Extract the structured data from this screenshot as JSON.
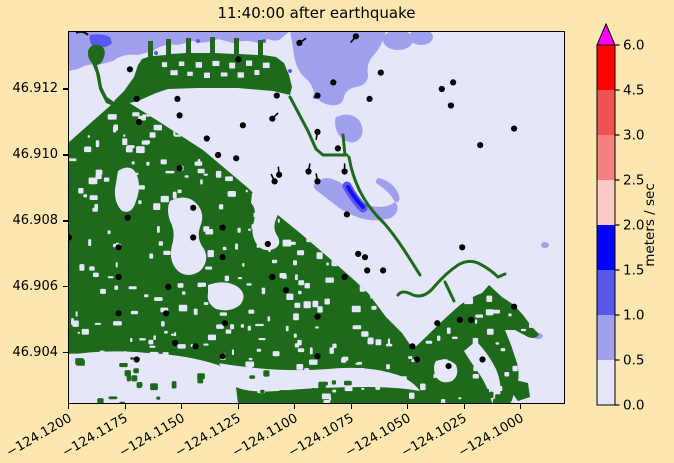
{
  "figure": {
    "title": "11:40:00 after earthquake"
  },
  "colors": {
    "figure_background": "#FCE7B0",
    "water": "#E6E6FA",
    "land_green": "#1C6A1A",
    "velocity_05_10": "#A0A0EE",
    "velocity_10_15": "#5858EE",
    "velocity_15_20": "#1212F0",
    "gauge_dot": "#000000"
  },
  "chart_data": {
    "type": "map",
    "title": "11:40:00 after earthquake",
    "description": "Tsunami current speed map with shoreline, inundated land in green, water velocity shading, and black gauge dots",
    "x_axis": {
      "label": "",
      "lim": [
        -124.12004,
        -124.09805
      ],
      "ticks": [
        -124.12,
        -124.1175,
        -124.115,
        -124.1125,
        -124.11,
        -124.1075,
        -124.105,
        -124.1025,
        -124.1
      ],
      "tick_labels": [
        "−124.1200",
        "−124.1175",
        "−124.1150",
        "−124.1125",
        "−124.1100",
        "−124.1075",
        "−124.1050",
        "−124.1025",
        "−124.1000"
      ],
      "tick_rotation_deg": 30
    },
    "y_axis": {
      "label": "",
      "lim": [
        46.90245,
        46.91376
      ],
      "ticks": [
        46.912,
        46.91,
        46.908,
        46.906,
        46.904
      ],
      "tick_labels": [
        "46.912",
        "46.910",
        "46.908",
        "46.906",
        "46.904"
      ]
    },
    "colorbar": {
      "label": "meters / sec",
      "boundary_values": [
        0.0,
        0.5,
        1.0,
        1.5,
        2.0,
        2.5,
        3.0,
        4.5,
        6.0
      ],
      "boundary_labels": [
        "0.0",
        "0.5",
        "1.0",
        "1.5",
        "2.0",
        "2.5",
        "3.0",
        "4.5",
        "6.0"
      ],
      "segment_colors_bottom_to_top": [
        "#E6E6FA",
        "#A0A0EE",
        "#5858EE",
        "#0000FF",
        "#FAC8C8",
        "#F48080",
        "#EE5252",
        "#FF0000"
      ],
      "over_arrow_color": "#FF00FF"
    },
    "gauges": [
      [
        -124.1098,
        46.9134,
        35
      ],
      [
        -124.1073,
        46.9136,
        230
      ],
      [
        -124.1125,
        46.9129
      ],
      [
        -124.1173,
        46.9126
      ],
      [
        -124.1062,
        46.9125
      ],
      [
        -124.1035,
        46.912
      ],
      [
        -124.103,
        46.9122
      ],
      [
        -124.1083,
        46.9122
      ],
      [
        -124.109,
        46.9118
      ],
      [
        -124.1067,
        46.9117
      ],
      [
        -124.1031,
        46.9115
      ],
      [
        -124.117,
        46.9117
      ],
      [
        -124.1152,
        46.9117
      ],
      [
        -124.1108,
        46.9118
      ],
      [
        -124.1151,
        46.9112
      ],
      [
        -124.1169,
        46.911
      ],
      [
        -124.1123,
        46.9109
      ],
      [
        -124.111,
        46.9111,
        45
      ],
      [
        -124.1003,
        46.9108
      ],
      [
        -124.1139,
        46.9105
      ],
      [
        -124.1018,
        46.9103
      ],
      [
        -124.1134,
        46.91
      ],
      [
        -124.1126,
        46.9099
      ],
      [
        -124.1151,
        46.9096
      ],
      [
        -124.1107,
        46.9094,
        95
      ],
      [
        -124.1094,
        46.9095,
        80
      ],
      [
        -124.109,
        46.9092,
        100
      ],
      [
        -124.1109,
        46.9092,
        115
      ],
      [
        -124.109,
        46.9107,
        260
      ],
      [
        -124.1081,
        46.9102
      ],
      [
        -124.1078,
        46.9095,
        90
      ],
      [
        -124.1077,
        46.9082
      ],
      [
        -124.1026,
        46.9072
      ],
      [
        -124.1072,
        46.907
      ],
      [
        -124.1069,
        46.9069
      ],
      [
        -124.1078,
        46.9063
      ],
      [
        -124.1068,
        46.9065
      ],
      [
        -124.1061,
        46.9065
      ],
      [
        -124.1003,
        46.9054
      ],
      [
        -124.1037,
        46.9049
      ],
      [
        -124.1027,
        46.905
      ],
      [
        -124.1022,
        46.905
      ],
      [
        -124.1048,
        46.9042
      ],
      [
        -124.1046,
        46.9038
      ],
      [
        -124.1017,
        46.9038
      ],
      [
        -124.1032,
        46.9036
      ],
      [
        -124.1145,
        46.9084
      ],
      [
        -124.1174,
        46.9081
      ],
      [
        -124.12,
        46.9075
      ],
      [
        -124.1178,
        46.9072
      ],
      [
        -124.1145,
        46.9075
      ],
      [
        -124.1132,
        46.9078
      ],
      [
        -124.1112,
        46.9073
      ],
      [
        -124.111,
        46.9063
      ],
      [
        -124.1178,
        46.9063
      ],
      [
        -124.1156,
        46.906
      ],
      [
        -124.1132,
        46.9069
      ],
      [
        -124.1178,
        46.9052
      ],
      [
        -124.1157,
        46.9052
      ],
      [
        -124.1131,
        46.9049
      ],
      [
        -124.1153,
        46.9043
      ],
      [
        -124.1144,
        46.9042
      ],
      [
        -124.1132,
        46.9039
      ],
      [
        -124.117,
        46.9038
      ],
      [
        -124.109,
        46.9039
      ],
      [
        -124.109,
        46.9051
      ],
      [
        -124.1104,
        46.9059
      ]
    ]
  }
}
